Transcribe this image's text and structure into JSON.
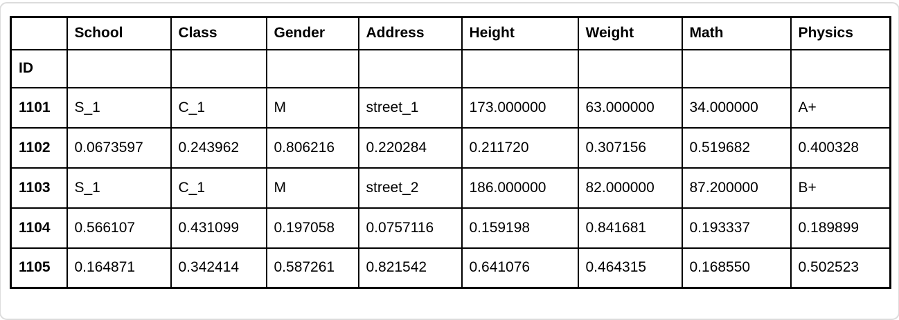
{
  "table": {
    "index_name": "ID",
    "columns": [
      "School",
      "Class",
      "Gender",
      "Address",
      "Height",
      "Weight",
      "Math",
      "Physics"
    ],
    "rows": [
      {
        "id": "1101",
        "cells": [
          "S_1",
          "C_1",
          "M",
          "street_1",
          "173.000000",
          "63.000000",
          "34.000000",
          "A+"
        ]
      },
      {
        "id": "1102",
        "cells": [
          "0.0673597",
          "0.243962",
          "0.806216",
          "0.220284",
          "0.211720",
          "0.307156",
          "0.519682",
          "0.400328"
        ]
      },
      {
        "id": "1103",
        "cells": [
          "S_1",
          "C_1",
          "M",
          "street_2",
          "186.000000",
          "82.000000",
          "87.200000",
          "B+"
        ]
      },
      {
        "id": "1104",
        "cells": [
          "0.566107",
          "0.431099",
          "0.197058",
          "0.0757116",
          "0.159198",
          "0.841681",
          "0.193337",
          "0.189899"
        ]
      },
      {
        "id": "1105",
        "cells": [
          "0.164871",
          "0.342414",
          "0.587261",
          "0.821542",
          "0.641076",
          "0.464315",
          "0.168550",
          "0.502523"
        ]
      }
    ]
  },
  "colors": {
    "table_border": "#000000",
    "text": "#000000",
    "background": "#ffffff",
    "container_edge": "#dcdcdc"
  }
}
